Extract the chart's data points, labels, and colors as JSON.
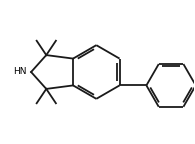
{
  "background_color": "#ffffff",
  "line_color": "#1a1a1a",
  "line_width": 1.3,
  "text_color": "#000000",
  "hn_label": "HN",
  "fig_width": 1.95,
  "fig_height": 1.44,
  "dpi": 100
}
